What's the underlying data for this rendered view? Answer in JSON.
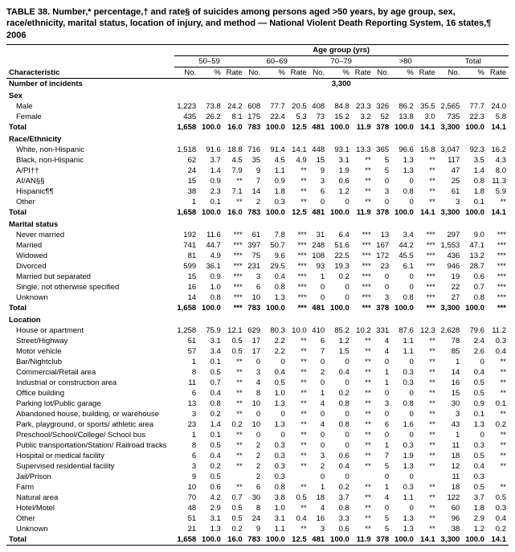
{
  "title": "TABLE 38. Number,* percentage,† and rate§ of suicides among persons aged >50 years, by age group, sex, race/ethnicity, marital status, location of injury, and method — National Violent Death Reporting System, 16 states,¶ 2006",
  "age_header": "Age group (yrs)",
  "groups": [
    "50–59",
    "60–69",
    "70–79",
    ">80",
    "Total"
  ],
  "cols": [
    "No.",
    "%",
    "Rate"
  ],
  "char_label": "Characteristic",
  "num_incidents_label": "Number of incidents",
  "num_incidents_value": "3,300",
  "sections": [
    {
      "name": "Sex",
      "rows": [
        {
          "label": "Male",
          "v": [
            "1,223",
            "73.8",
            "24.2",
            "608",
            "77.7",
            "20.5",
            "408",
            "84.8",
            "23.3",
            "326",
            "86.2",
            "35.5",
            "2,565",
            "77.7",
            "24.0"
          ]
        },
        {
          "label": "Female",
          "v": [
            "435",
            "26.2",
            "8.1",
            "175",
            "22.4",
            "5.3",
            "73",
            "15.2",
            "3.2",
            "52",
            "13.8",
            "3.0",
            "735",
            "22.3",
            "5.8"
          ]
        }
      ],
      "total": {
        "label": "Total",
        "v": [
          "1,658",
          "100.0",
          "16.0",
          "783",
          "100.0",
          "12.5",
          "481",
          "100.0",
          "11.9",
          "378",
          "100.0",
          "14.1",
          "3,300",
          "100.0",
          "14.1"
        ]
      }
    },
    {
      "name": "Race/Ethnicity",
      "rows": [
        {
          "label": "White, non-Hispanic",
          "v": [
            "1,518",
            "91.6",
            "18.8",
            "716",
            "91.4",
            "14.1",
            "448",
            "93.1",
            "13.3",
            "365",
            "96.6",
            "15.8",
            "3,047",
            "92.3",
            "16.2"
          ]
        },
        {
          "label": "Black, non-Hispanic",
          "v": [
            "62",
            "3.7",
            "4.5",
            "35",
            "4.5",
            "4.9",
            "15",
            "3.1",
            "**",
            "5",
            "1.3",
            "**",
            "117",
            "3.5",
            "4.3"
          ]
        },
        {
          "label": "A/PI††",
          "v": [
            "24",
            "1.4",
            "7.9",
            "9",
            "1.1",
            "**",
            "9",
            "1.9",
            "**",
            "5",
            "1.3",
            "**",
            "47",
            "1.4",
            "8.0"
          ]
        },
        {
          "label": "AI/AN§§",
          "v": [
            "15",
            "0.9",
            "**",
            "7",
            "0.9",
            "**",
            "3",
            "0.6",
            "**",
            "0",
            "0",
            "**",
            "25",
            "0.8",
            "11.3"
          ]
        },
        {
          "label": "Hispanic¶¶",
          "v": [
            "38",
            "2.3",
            "7.1",
            "14",
            "1.8",
            "**",
            "6",
            "1.2",
            "**",
            "3",
            "0.8",
            "**",
            "61",
            "1.8",
            "5.9"
          ]
        },
        {
          "label": "Other",
          "v": [
            "1",
            "0.1",
            "**",
            "2",
            "0.3",
            "**",
            "0",
            "0",
            "**",
            "0",
            "0",
            "**",
            "3",
            "0.1",
            "**"
          ]
        }
      ],
      "total": {
        "label": "Total",
        "v": [
          "1,658",
          "100.0",
          "16.0",
          "783",
          "100.0",
          "12.5",
          "481",
          "100.0",
          "11.9",
          "378",
          "100.0",
          "14.1",
          "3,300",
          "100.0",
          "14.1"
        ]
      }
    },
    {
      "name": "Marital status",
      "rows": [
        {
          "label": "Never married",
          "v": [
            "192",
            "11.6",
            "***",
            "61",
            "7.8",
            "***",
            "31",
            "6.4",
            "***",
            "13",
            "3.4",
            "***",
            "297",
            "9.0",
            "***"
          ]
        },
        {
          "label": "Married",
          "v": [
            "741",
            "44.7",
            "***",
            "397",
            "50.7",
            "***",
            "248",
            "51.6",
            "***",
            "167",
            "44.2",
            "***",
            "1,553",
            "47.1",
            "***"
          ]
        },
        {
          "label": "Widowed",
          "v": [
            "81",
            "4.9",
            "***",
            "75",
            "9.6",
            "***",
            "108",
            "22.5",
            "***",
            "172",
            "45.5",
            "***",
            "436",
            "13.2",
            "***"
          ]
        },
        {
          "label": "Divorced",
          "v": [
            "599",
            "36.1",
            "***",
            "231",
            "29.5",
            "***",
            "93",
            "19.3",
            "***",
            "23",
            "6.1",
            "***",
            "946",
            "28.7",
            "***"
          ]
        },
        {
          "label": "Married but separated",
          "v": [
            "15",
            "0.9",
            "***",
            "3",
            "0.4",
            "***",
            "1",
            "0.2",
            "***",
            "0",
            "0",
            "***",
            "19",
            "0.6",
            "***"
          ]
        },
        {
          "label": "Single, not otherwise specified",
          "v": [
            "16",
            "1.0",
            "***",
            "6",
            "0.8",
            "***",
            "0",
            "0",
            "***",
            "0",
            "0",
            "***",
            "22",
            "0.7",
            "***"
          ]
        },
        {
          "label": "Unknown",
          "v": [
            "14",
            "0.8",
            "***",
            "10",
            "1.3",
            "***",
            "0",
            "0",
            "***",
            "3",
            "0.8",
            "***",
            "27",
            "0.8",
            "***"
          ]
        }
      ],
      "total": {
        "label": "Total",
        "v": [
          "1,658",
          "100.0",
          "***",
          "783",
          "100.0",
          "***",
          "481",
          "100.0",
          "***",
          "378",
          "100.0",
          "***",
          "3,300",
          "100.0",
          "***"
        ]
      }
    },
    {
      "name": "Location",
      "rows": [
        {
          "label": "House or apartment",
          "v": [
            "1,258",
            "75.9",
            "12.1",
            "629",
            "80.3",
            "10.0",
            "410",
            "85.2",
            "10.2",
            "331",
            "87.6",
            "12.3",
            "2,628",
            "79.6",
            "11.2"
          ]
        },
        {
          "label": "Street/Highway",
          "v": [
            "51",
            "3.1",
            "0.5",
            "17",
            "2.2",
            "**",
            "6",
            "1.2",
            "**",
            "4",
            "1.1",
            "**",
            "78",
            "2.4",
            "0.3"
          ]
        },
        {
          "label": "Motor vehicle",
          "v": [
            "57",
            "3.4",
            "0.5",
            "17",
            "2.2",
            "**",
            "7",
            "1.5",
            "**",
            "4",
            "1.1",
            "**",
            "85",
            "2.6",
            "0.4"
          ]
        },
        {
          "label": "Bar/Nightclub",
          "v": [
            "1",
            "0.1",
            "**",
            "0",
            "0",
            "**",
            "0",
            "0",
            "**",
            "0",
            "0",
            "**",
            "1",
            "0",
            "**"
          ]
        },
        {
          "label": "Commercial/Retail area",
          "v": [
            "8",
            "0.5",
            "**",
            "3",
            "0.4",
            "**",
            "2",
            "0.4",
            "**",
            "1",
            "0.3",
            "**",
            "14",
            "0.4",
            "**"
          ]
        },
        {
          "label": "Industrial or construction area",
          "v": [
            "11",
            "0.7",
            "**",
            "4",
            "0.5",
            "**",
            "0",
            "0",
            "**",
            "1",
            "0.3",
            "**",
            "16",
            "0.5",
            "**"
          ]
        },
        {
          "label": "Office building",
          "v": [
            "6",
            "0.4",
            "**",
            "8",
            "1.0",
            "**",
            "1",
            "0.2",
            "**",
            "0",
            "0",
            "**",
            "15",
            "0.5",
            "**"
          ]
        },
        {
          "label": "Parking lot/Public garage",
          "v": [
            "13",
            "0.8",
            "**",
            "10",
            "1.3",
            "**",
            "4",
            "0.8",
            "**",
            "3",
            "0.8",
            "**",
            "30",
            "0.9",
            "0.1"
          ]
        },
        {
          "label": "Abandoned house, building, or warehouse",
          "v": [
            "3",
            "0.2",
            "**",
            "0",
            "0",
            "**",
            "0",
            "0",
            "**",
            "0",
            "0",
            "**",
            "3",
            "0.1",
            "**"
          ]
        },
        {
          "label": "Park, playground, or sports/ athletic area",
          "v": [
            "23",
            "1.4",
            "0.2",
            "10",
            "1.3",
            "**",
            "4",
            "0.8",
            "**",
            "6",
            "1.6",
            "**",
            "43",
            "1.3",
            "0.2"
          ]
        },
        {
          "label": "Preschool/School/College/ School bus",
          "v": [
            "1",
            "0.1",
            "**",
            "0",
            "0",
            "**",
            "0",
            "0",
            "**",
            "0",
            "0",
            "**",
            "1",
            "0",
            "**"
          ]
        },
        {
          "label": "Public transportation/Station/ Railroad tracks",
          "v": [
            "8",
            "0.5",
            "**",
            "2",
            "0.3",
            "**",
            "0",
            "0",
            "**",
            "1",
            "0.3",
            "**",
            "11",
            "0.3",
            "**"
          ]
        },
        {
          "label": "Hospital or medical facility",
          "v": [
            "6",
            "0.4",
            "**",
            "2",
            "0.3",
            "**",
            "3",
            "0.6",
            "**",
            "7",
            "1.9",
            "**",
            "18",
            "0.5",
            "**"
          ]
        },
        {
          "label": "Supervised residential facility",
          "v": [
            "3",
            "0.2",
            "**",
            "2",
            "0.3",
            "**",
            "2",
            "0.4",
            "**",
            "5",
            "1.3",
            "**",
            "12",
            "0.4",
            "**"
          ]
        },
        {
          "label": "Jail/Prison",
          "v": [
            "9",
            "0.5",
            "",
            "2",
            "0.3",
            "",
            "0",
            "0",
            "",
            "0",
            "0",
            "",
            "11",
            "0.3",
            ""
          ]
        },
        {
          "label": "Farm",
          "v": [
            "10",
            "0.6",
            "**",
            "6",
            "0.8",
            "**",
            "1",
            "0.2",
            "**",
            "1",
            "0.3",
            "**",
            "18",
            "0.5",
            "**"
          ]
        },
        {
          "label": "Natural area",
          "v": [
            "70",
            "4.2",
            "0.7",
            "30",
            "3.8",
            "0.5",
            "18",
            "3.7",
            "**",
            "4",
            "1.1",
            "**",
            "122",
            "3.7",
            "0.5"
          ]
        },
        {
          "label": "Hotel/Motel",
          "v": [
            "48",
            "2.9",
            "0.5",
            "8",
            "1.0",
            "**",
            "4",
            "0.8",
            "**",
            "0",
            "0",
            "**",
            "60",
            "1.8",
            "0.3"
          ]
        },
        {
          "label": "Other",
          "v": [
            "51",
            "3.1",
            "0.5",
            "24",
            "3.1",
            "0.4",
            "16",
            "3.3",
            "**",
            "5",
            "1.3",
            "**",
            "96",
            "2.9",
            "0.4"
          ]
        },
        {
          "label": "Unknown",
          "v": [
            "21",
            "1.3",
            "0.2",
            "9",
            "1.1",
            "**",
            "3",
            "0.6",
            "**",
            "5",
            "1.3",
            "**",
            "38",
            "1.2",
            "0.2"
          ]
        }
      ],
      "total": {
        "label": "Total",
        "v": [
          "1,658",
          "100.0",
          "16.0",
          "783",
          "100.0",
          "12.5",
          "481",
          "100.0",
          "11.9",
          "378",
          "100.0",
          "14.1",
          "3,300",
          "100.0",
          "14.1"
        ]
      }
    }
  ]
}
